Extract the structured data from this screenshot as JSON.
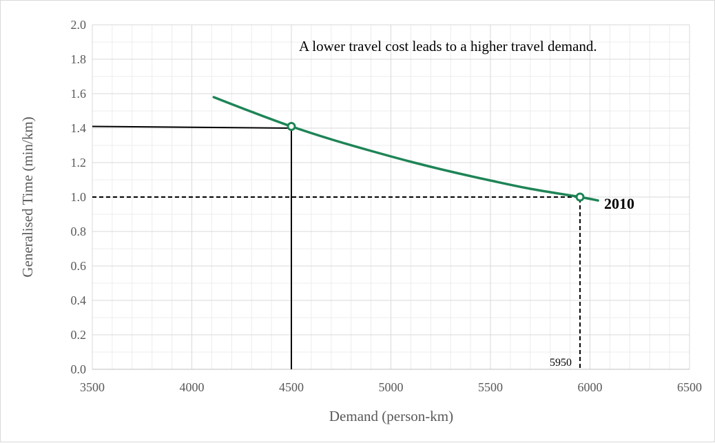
{
  "chart_data": {
    "type": "line",
    "xlabel": "Demand (person-km)",
    "ylabel": "Generalised Time (min/km)",
    "xlim": [
      3500,
      6500
    ],
    "ylim": [
      0,
      2.0
    ],
    "x_ticks": [
      "3500",
      "4000",
      "4500",
      "5000",
      "5500",
      "6000",
      "6500"
    ],
    "y_ticks": [
      "0.0",
      "0.2",
      "0.4",
      "0.6",
      "0.8",
      "1.0",
      "1.2",
      "1.4",
      "1.6",
      "1.8",
      "2.0"
    ],
    "grid": true,
    "annotation": "A lower travel cost leads to a higher travel demand.",
    "series": [
      {
        "name": "2010",
        "color": "#1e8456",
        "x": [
          4110,
          4300,
          4500,
          4700,
          4900,
          5100,
          5300,
          5500,
          5700,
          5950,
          6040
        ],
        "y": [
          1.58,
          1.495,
          1.41,
          1.335,
          1.268,
          1.205,
          1.148,
          1.096,
          1.048,
          1.0,
          0.98
        ]
      }
    ],
    "markers": [
      {
        "x": 4500,
        "y": 1.41
      },
      {
        "x": 5950,
        "y": 1.0
      }
    ],
    "reference_lines": [
      {
        "style": "solid",
        "points": [
          [
            3500,
            1.41
          ],
          [
            4500,
            1.4
          ],
          [
            4500,
            0
          ]
        ]
      },
      {
        "style": "dashed",
        "points": [
          [
            3500,
            1.0
          ],
          [
            5950,
            1.0
          ],
          [
            5950,
            0
          ]
        ]
      }
    ],
    "marker_label": "5950"
  }
}
